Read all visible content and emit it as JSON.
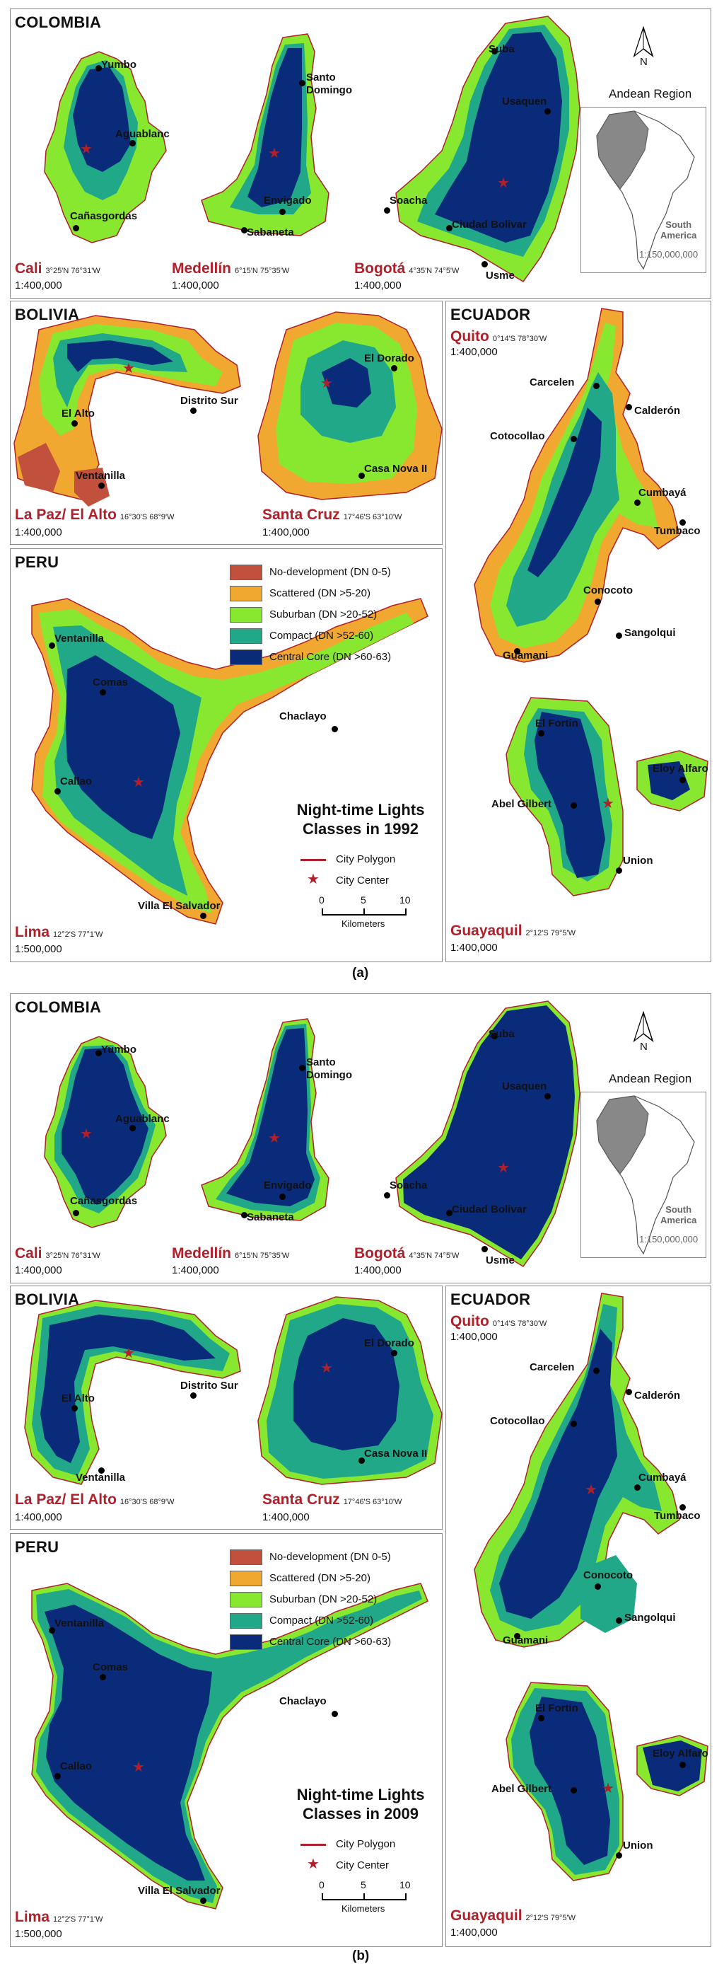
{
  "legend": {
    "classes": [
      {
        "label": "No-development (DN 0-5)",
        "color": "#c1503d"
      },
      {
        "label": "Scattered (DN >5-20)",
        "color": "#f0a830"
      },
      {
        "label": "Suburban (DN >20-52)",
        "color": "#88e830"
      },
      {
        "label": "Compact (DN >52-60)",
        "color": "#20a888"
      },
      {
        "label": "Central Core (DN >60-63)",
        "color": "#0a2a7a"
      }
    ],
    "polygon_label": "City Polygon",
    "center_label": "City Center",
    "polygon_color": "#b0202a",
    "center_color": "#b0202a"
  },
  "scalebar": {
    "ticks": [
      "0",
      "5",
      "10"
    ],
    "unit": "Kilometers"
  },
  "figures": [
    {
      "id": "a",
      "caption": "(a)",
      "title_line1": "Night-time Lights",
      "title_line2": "Classes in 1992",
      "colombia": {
        "country": "COLOMBIA",
        "cali": {
          "name": "Cali",
          "coord": "3°25'N 76°31'W",
          "scale": "1:400,000",
          "labels": [
            "Yumbo",
            "Aguablanc",
            "Cañasgordas"
          ]
        },
        "medellin": {
          "name": "Medellín",
          "coord": "6°15'N 75°35'W",
          "scale": "1:400,000",
          "labels": [
            "Santo",
            "Domingo",
            "Envigado",
            "Sabaneta"
          ]
        },
        "bogota": {
          "name": "Bogotá",
          "coord": "4°35'N 74°5'W",
          "scale": "1:400,000",
          "labels": [
            "Suba",
            "Usaquen",
            "Soacha",
            "Ciudad Bolivar",
            "Usme"
          ]
        }
      },
      "andean": {
        "title": "Andean Region",
        "label_line1": "South",
        "label_line2": "America",
        "scale": "1:150,000,000",
        "north": "N"
      },
      "bolivia": {
        "country": "BOLIVIA",
        "lapaz": {
          "name": "La Paz/ El Alto",
          "coord": "16°30'S 68°9'W",
          "scale": "1:400,000",
          "labels": [
            "El Alto",
            "Distrito Sur",
            "Ventanilla"
          ]
        },
        "santacruz": {
          "name": "Santa Cruz",
          "coord": "17°46'S 63°10'W",
          "scale": "1:400,000",
          "labels": [
            "El Dorado",
            "Casa Nova II"
          ]
        }
      },
      "ecuador": {
        "country": "ECUADOR",
        "quito": {
          "name": "Quito",
          "coord": "0°14'S 78°30'W",
          "scale": "1:400,000",
          "labels": [
            "Carcelen",
            "Calderón",
            "Cotocollao",
            "Cumbayá",
            "Tumbaco",
            "Conocoto",
            "Sangolqui",
            "Guamani"
          ]
        },
        "guayaquil": {
          "name": "Guayaquil",
          "coord": "2°12'S 79°5'W",
          "scale": "1:400,000",
          "labels": [
            "El Fortin",
            "Eloy Alfaro",
            "Abel Gilbert",
            "Union"
          ]
        }
      },
      "peru": {
        "country": "PERU",
        "lima": {
          "name": "Lima",
          "coord": "12°2'S 77°1'W",
          "scale": "1:500,000",
          "labels": [
            "Ventanilla",
            "Comas",
            "Chaclayo",
            "Callao",
            "Villa El Salvador"
          ]
        }
      }
    },
    {
      "id": "b",
      "caption": "(b)",
      "title_line1": "Night-time Lights",
      "title_line2": "Classes in 2009",
      "colombia": {
        "country": "COLOMBIA",
        "cali": {
          "name": "Cali",
          "coord": "3°25'N 76°31'W",
          "scale": "1:400,000",
          "labels": [
            "Yumbo",
            "Aguablanc",
            "Cañasgordas"
          ]
        },
        "medellin": {
          "name": "Medellín",
          "coord": "6°15'N 75°35'W",
          "scale": "1:400,000",
          "labels": [
            "Santo",
            "Domingo",
            "Envigado",
            "Sabaneta"
          ]
        },
        "bogota": {
          "name": "Bogotá",
          "coord": "4°35'N 74°5'W",
          "scale": "1:400,000",
          "labels": [
            "Suba",
            "Usaquen",
            "Soacha",
            "Ciudad Bolivar",
            "Usme"
          ]
        }
      },
      "andean": {
        "title": "Andean Region",
        "label_line1": "South",
        "label_line2": "America",
        "scale": "1:150,000,000",
        "north": "N"
      },
      "bolivia": {
        "country": "BOLIVIA",
        "lapaz": {
          "name": "La Paz/ El Alto",
          "coord": "16°30'S 68°9'W",
          "scale": "1:400,000",
          "labels": [
            "El Alto",
            "Distrito Sur",
            "Ventanilla"
          ]
        },
        "santacruz": {
          "name": "Santa Cruz",
          "coord": "17°46'S 63°10'W",
          "scale": "1:400,000",
          "labels": [
            "El Dorado",
            "Casa Nova II"
          ]
        }
      },
      "ecuador": {
        "country": "ECUADOR",
        "quito": {
          "name": "Quito",
          "coord": "0°14'S 78°30'W",
          "scale": "1:400,000",
          "labels": [
            "Carcelen",
            "Calderón",
            "Cotocollao",
            "Cumbayá",
            "Tumbaco",
            "Conocoto",
            "Sangolqui",
            "Guamani"
          ]
        },
        "guayaquil": {
          "name": "Guayaquil",
          "coord": "2°12'S 79°5'W",
          "scale": "1:400,000",
          "labels": [
            "El Fortin",
            "Eloy Alfaro",
            "Abel Gilbert",
            "Union"
          ]
        }
      },
      "peru": {
        "country": "PERU",
        "lima": {
          "name": "Lima",
          "coord": "12°2'S 77°1'W",
          "scale": "1:500,000",
          "labels": [
            "Ventanilla",
            "Comas",
            "Chaclayo",
            "Callao",
            "Villa El Salvador"
          ]
        }
      }
    }
  ]
}
